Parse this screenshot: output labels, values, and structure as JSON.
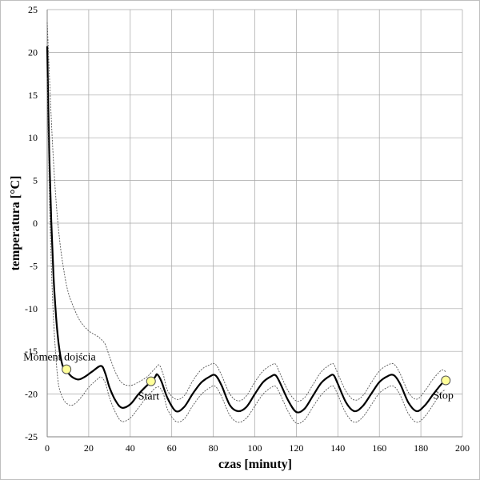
{
  "chart_data": {
    "type": "line",
    "title": "",
    "xlabel": "czas [minuty]",
    "ylabel": "temperatura [°C]",
    "xlim": [
      0,
      200
    ],
    "ylim": [
      -25,
      25
    ],
    "xticks": [
      0,
      20,
      40,
      60,
      80,
      100,
      120,
      140,
      160,
      180,
      200
    ],
    "yticks": [
      25,
      20,
      15,
      10,
      5,
      0,
      -5,
      -10,
      -15,
      -20,
      -25
    ],
    "grid": true,
    "legend": "none",
    "series": [
      {
        "style": "solid-black-thick",
        "x": [
          0,
          1,
          2,
          3,
          4,
          5,
          6,
          7,
          8,
          10,
          12,
          15,
          18,
          22,
          26,
          28,
          30,
          33,
          36,
          40,
          44,
          48,
          50,
          52,
          53,
          55,
          58,
          62,
          66,
          70,
          74,
          78,
          81,
          84,
          88,
          92,
          96,
          100,
          104,
          108,
          110,
          112,
          116,
          120,
          124,
          128,
          132,
          136,
          138,
          140,
          144,
          148,
          152,
          156,
          160,
          164,
          167,
          170,
          174,
          178,
          182,
          186,
          190,
          192
        ],
        "y": [
          20.7,
          8.0,
          0.0,
          -6.0,
          -10.0,
          -13.0,
          -15.0,
          -16.3,
          -17.0,
          -17.5,
          -18.0,
          -18.3,
          -18.0,
          -17.3,
          -16.7,
          -17.6,
          -19.2,
          -20.8,
          -21.6,
          -21.2,
          -20.0,
          -19.0,
          -18.6,
          -18.0,
          -17.7,
          -18.5,
          -20.5,
          -22.0,
          -21.5,
          -20.0,
          -18.7,
          -18.0,
          -17.8,
          -19.0,
          -21.3,
          -22.0,
          -21.5,
          -20.0,
          -18.6,
          -17.9,
          -17.8,
          -18.6,
          -20.7,
          -22.1,
          -21.7,
          -20.2,
          -18.7,
          -17.9,
          -17.8,
          -18.8,
          -21.0,
          -22.0,
          -21.4,
          -20.0,
          -18.6,
          -17.9,
          -17.8,
          -18.8,
          -21.0,
          -22.0,
          -21.3,
          -20.0,
          -18.8,
          -18.4
        ]
      },
      {
        "style": "dotted-upper",
        "x": [
          0,
          2,
          4,
          6,
          8,
          10,
          13,
          16,
          20,
          24,
          26,
          28,
          30,
          33,
          36,
          40,
          44,
          48,
          50,
          52,
          54,
          56,
          58,
          62,
          66,
          70,
          74,
          78,
          81,
          84,
          88,
          92,
          96,
          100,
          104,
          108,
          110,
          112,
          116,
          120,
          124,
          128,
          132,
          136,
          138,
          140,
          144,
          148,
          152,
          156,
          160,
          164,
          167,
          170,
          174,
          178,
          182,
          186,
          190,
          192
        ],
        "y": [
          23.5,
          12.0,
          3.5,
          -2.0,
          -5.5,
          -8.0,
          -10.0,
          -11.5,
          -12.6,
          -13.2,
          -13.6,
          -14.2,
          -15.6,
          -17.5,
          -18.7,
          -19.0,
          -18.6,
          -18.0,
          -17.5,
          -17.0,
          -16.6,
          -17.8,
          -19.6,
          -20.6,
          -20.2,
          -18.5,
          -17.2,
          -16.6,
          -16.5,
          -17.8,
          -20.0,
          -20.8,
          -20.2,
          -18.6,
          -17.3,
          -16.6,
          -16.5,
          -17.5,
          -19.6,
          -20.8,
          -20.4,
          -18.9,
          -17.4,
          -16.6,
          -16.5,
          -17.6,
          -19.7,
          -20.7,
          -20.2,
          -18.7,
          -17.3,
          -16.6,
          -16.5,
          -17.6,
          -19.8,
          -20.6,
          -19.6,
          -18.2,
          -17.2,
          -17.4
        ]
      },
      {
        "style": "dotted-lower",
        "x": [
          0,
          1,
          2,
          3,
          4,
          5,
          6,
          8,
          10,
          12,
          14,
          17,
          20,
          24,
          26,
          28,
          30,
          33,
          36,
          40,
          44,
          48,
          50,
          52,
          54,
          56,
          58,
          62,
          66,
          70,
          74,
          78,
          81,
          84,
          88,
          92,
          96,
          100,
          104,
          108,
          110,
          112,
          116,
          120,
          124,
          128,
          132,
          136,
          138,
          140,
          144,
          148,
          152,
          156,
          160,
          164,
          167,
          170,
          174,
          178,
          182,
          186,
          190,
          192
        ],
        "y": [
          17.0,
          4.0,
          -5.0,
          -11.0,
          -15.0,
          -18.0,
          -19.5,
          -20.7,
          -21.2,
          -21.3,
          -21.0,
          -20.2,
          -19.2,
          -18.3,
          -18.0,
          -18.7,
          -20.4,
          -22.2,
          -23.2,
          -22.8,
          -21.6,
          -20.3,
          -19.8,
          -19.3,
          -19.2,
          -20.0,
          -21.8,
          -23.2,
          -22.9,
          -21.4,
          -20.1,
          -19.3,
          -19.1,
          -20.3,
          -22.5,
          -23.3,
          -22.8,
          -21.4,
          -20.0,
          -19.2,
          -19.1,
          -19.9,
          -22.0,
          -23.4,
          -23.0,
          -21.5,
          -20.1,
          -19.2,
          -19.1,
          -20.1,
          -22.3,
          -23.3,
          -22.7,
          -21.3,
          -19.9,
          -19.2,
          -19.1,
          -20.1,
          -22.3,
          -23.3,
          -22.6,
          -21.2,
          -19.8,
          -19.5
        ]
      }
    ],
    "markers": [
      {
        "label": "Moment dojścia",
        "x": 9.3,
        "y": -17.1,
        "color": "#ffff99"
      },
      {
        "label": "Start",
        "x": 50,
        "y": -18.5,
        "color": "#ffff99"
      },
      {
        "label": "Stop",
        "x": 192,
        "y": -18.4,
        "color": "#ffff99"
      }
    ]
  }
}
